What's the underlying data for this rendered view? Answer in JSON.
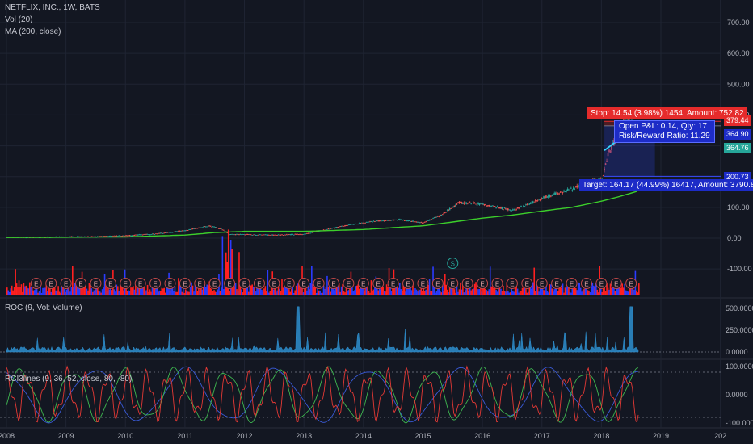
{
  "legend": {
    "symbol": "NETFLIX, INC., 1W, BATS",
    "vol": "Vol (20)",
    "ma": "MA (200, close)"
  },
  "panes": {
    "roc_label": "ROC (9, Vol: Volume)",
    "rci_label": "RCI3lines (9, 36, 52, close, 80, -80)"
  },
  "position": {
    "stop_label": "Stop: 14.54 (3.98%) 1454, Amount: 752.82",
    "pl_line1": "Open P&L: 0.14, Qty: 17",
    "pl_line2": "Risk/Reward Ratio: 11.29",
    "target_label": "Target: 164.17 (44.99%) 16417, Amount: 3790.8"
  },
  "price_flags": [
    {
      "value": "379.44",
      "color": "#e52b2b"
    },
    {
      "value": "364.90",
      "color": "#1d2cc7"
    },
    {
      "value": "364.76",
      "color": "#26a69a"
    },
    {
      "value": "200.73",
      "color": "#1d2cc7"
    }
  ],
  "colors": {
    "background": "#131722",
    "grid": "#1f2433",
    "up": "#26a69a",
    "down": "#ef5350",
    "ma": "#3ccf2b",
    "vol_up": "#2b3bff",
    "vol_down": "#ff2020",
    "roc": "#2e8fcf",
    "rci_fast": "#e53935",
    "rci_mid": "#3fb950",
    "rci_slow": "#3a5bd9"
  },
  "chart_data": {
    "type": "line",
    "title": "NETFLIX, INC., 1W, BATS",
    "x_ticks": [
      "2008",
      "2009",
      "2010",
      "2011",
      "2012",
      "2013",
      "2014",
      "2015",
      "2016",
      "2017",
      "2018",
      "2019",
      "202"
    ],
    "x_range": [
      2008,
      2020
    ],
    "price_axis": {
      "ticks": [
        "700.00",
        "600.00",
        "500.00",
        "400.00",
        "300.00",
        "200.00",
        "100.00",
        "0.00",
        "-100.00"
      ],
      "range": [
        -190,
        750
      ]
    },
    "roc_axis": {
      "ticks": [
        "500.0000",
        "250.0000",
        "0.0000"
      ]
    },
    "rci_axis": {
      "ticks": [
        "100.0000",
        "0.0000",
        "-100.0000"
      ]
    },
    "price_series": {
      "name": "Close",
      "x": [
        2008.0,
        2008.5,
        2009.0,
        2009.5,
        2010.0,
        2010.5,
        2011.0,
        2011.4,
        2011.6,
        2011.75,
        2012.0,
        2012.5,
        2013.0,
        2013.4,
        2013.8,
        2014.2,
        2014.6,
        2015.0,
        2015.3,
        2015.6,
        2016.0,
        2016.5,
        2017.0,
        2017.5,
        2017.9,
        2018.0,
        2018.1,
        2018.25,
        2018.4,
        2018.5,
        2018.6
      ],
      "y": [
        3,
        3,
        4,
        5,
        8,
        14,
        25,
        40,
        30,
        12,
        12,
        10,
        13,
        30,
        45,
        55,
        60,
        50,
        75,
        115,
        110,
        90,
        130,
        160,
        190,
        195,
        270,
        330,
        385,
        370,
        365
      ]
    },
    "ma_series": {
      "name": "MA (200, close)",
      "x": [
        2008.0,
        2009.0,
        2010.0,
        2011.0,
        2011.5,
        2012.0,
        2013.0,
        2014.0,
        2015.0,
        2016.0,
        2016.5,
        2017.0,
        2017.5,
        2018.0,
        2018.3,
        2018.6
      ],
      "y": [
        2,
        3,
        4,
        10,
        18,
        22,
        22,
        28,
        40,
        65,
        75,
        88,
        100,
        120,
        135,
        152
      ]
    },
    "position": {
      "entry": 364.76,
      "stop": 379.44,
      "target": 200.73,
      "stop_text": "Stop: 14.54 (3.98%) 1454, Amount: 752.82",
      "target_text": "Target: 164.17 (44.99%) 16417, Amount: 3790.8",
      "pnl_text": "Open P&L: 0.14, Qty: 17",
      "rr_text": "Risk/Reward Ratio: 11.29"
    },
    "earnings_marker_count": 43
  }
}
